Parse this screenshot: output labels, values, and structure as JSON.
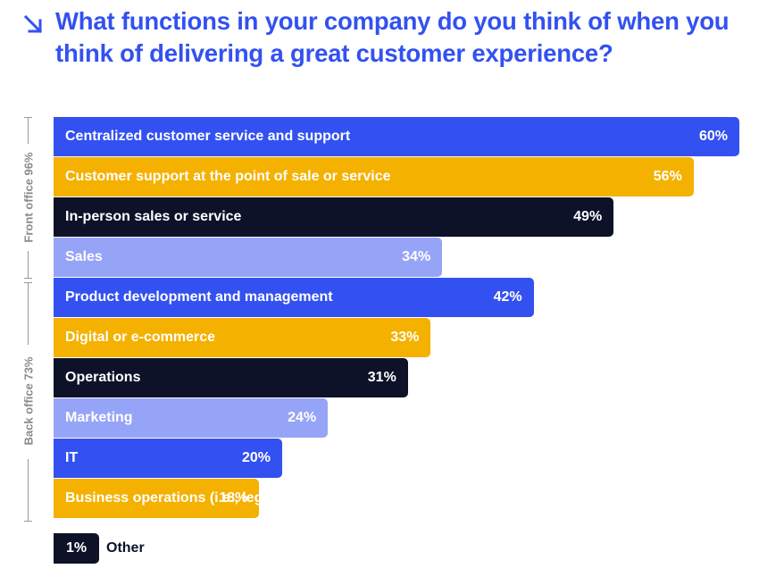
{
  "title": "What functions in your company do you think of when you think of delivering a great customer experience?",
  "icons": {
    "title_arrow": "arrow-down-right-icon"
  },
  "colors": {
    "title": "#3351f0",
    "blue": "#3351f0",
    "yellow": "#f5b100",
    "navy": "#0d1228",
    "lavender": "#96a4f7",
    "group_label": "#8a8a8a"
  },
  "groups": {
    "front": {
      "label": "Front office 96%"
    },
    "back": {
      "label": "Back office 73%"
    }
  },
  "chart_data": {
    "type": "bar",
    "orientation": "horizontal",
    "title": "What functions in your company do you think of when you think of delivering a great customer experience?",
    "unit": "%",
    "categories": [
      "Centralized customer service and support",
      "Customer support at the point of sale or service",
      "In-person sales or service",
      "Sales",
      "Product development and management",
      "Digital or e-commerce",
      "Operations",
      "Marketing",
      "IT",
      "Business operations (i.e., legal, finance, HR)",
      "Other"
    ],
    "values": [
      60,
      56,
      49,
      34,
      42,
      33,
      31,
      24,
      20,
      18,
      1
    ],
    "value_labels": [
      "60%",
      "56%",
      "49%",
      "34%",
      "42%",
      "33%",
      "31%",
      "24%",
      "20%",
      "18%",
      "1%"
    ],
    "bar_colors": [
      "#3351f0",
      "#f5b100",
      "#0d1228",
      "#96a4f7",
      "#3351f0",
      "#f5b100",
      "#0d1228",
      "#96a4f7",
      "#3351f0",
      "#f5b100",
      "#0d1228"
    ],
    "groups": [
      {
        "label": "Front office 96%",
        "categories": [
          "Centralized customer service and support",
          "Customer support at the point of sale or service",
          "In-person sales or service",
          "Sales"
        ]
      },
      {
        "label": "Back office 73%",
        "categories": [
          "Product development and management",
          "Digital or e-commerce",
          "Operations",
          "Marketing",
          "IT",
          "Business operations (i.e., legal, finance, HR)"
        ]
      }
    ],
    "xlim": [
      0,
      60
    ],
    "grid": false,
    "legend": "none"
  }
}
